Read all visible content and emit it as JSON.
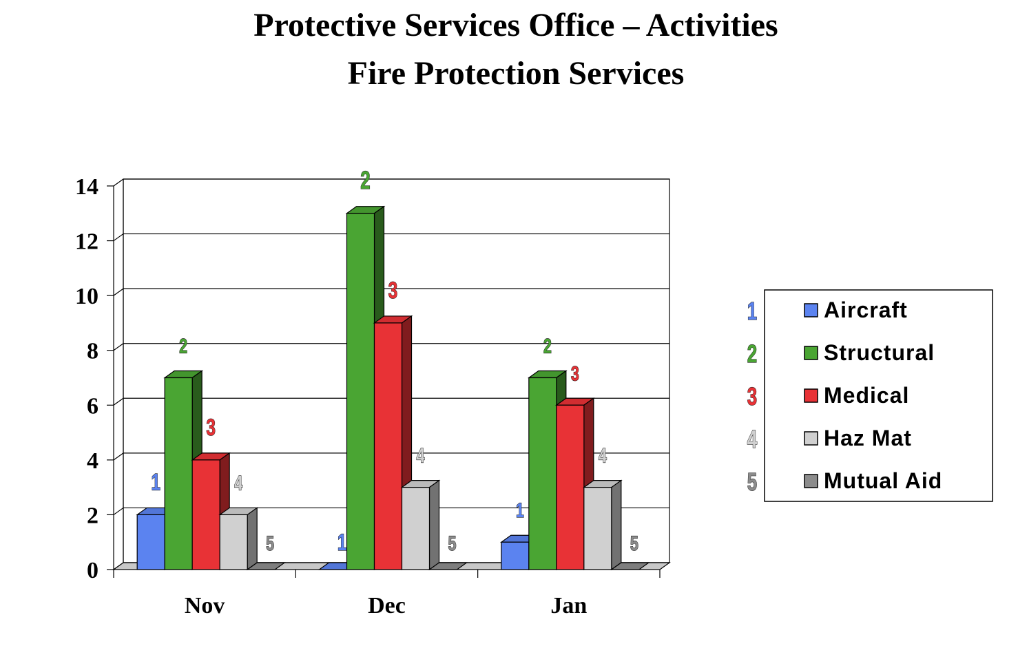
{
  "chart_data": {
    "type": "bar",
    "title": "Protective Services Office – Activities",
    "subtitle": "Fire Protection Services",
    "categories": [
      "Nov",
      "Dec",
      "Jan"
    ],
    "series": [
      {
        "name": "Aircraft",
        "label": "1",
        "color": "#5b83f0",
        "values": [
          2,
          0,
          1
        ]
      },
      {
        "name": "Structural",
        "label": "2",
        "color": "#4aa533",
        "values": [
          7,
          13,
          7
        ]
      },
      {
        "name": "Medical",
        "label": "3",
        "color": "#e83236",
        "values": [
          4,
          9,
          6
        ]
      },
      {
        "name": "Haz Mat",
        "label": "4",
        "color": "#d0d0d0",
        "values": [
          2,
          3,
          3
        ]
      },
      {
        "name": "Mutual Aid",
        "label": "5",
        "color": "#8c8c8c",
        "values": [
          0,
          0,
          0
        ]
      }
    ],
    "ylim": [
      0,
      14
    ],
    "yticks": [
      "0",
      "2",
      "4",
      "6",
      "8",
      "10",
      "12",
      "14"
    ],
    "grid": true,
    "legend_position": "right"
  }
}
